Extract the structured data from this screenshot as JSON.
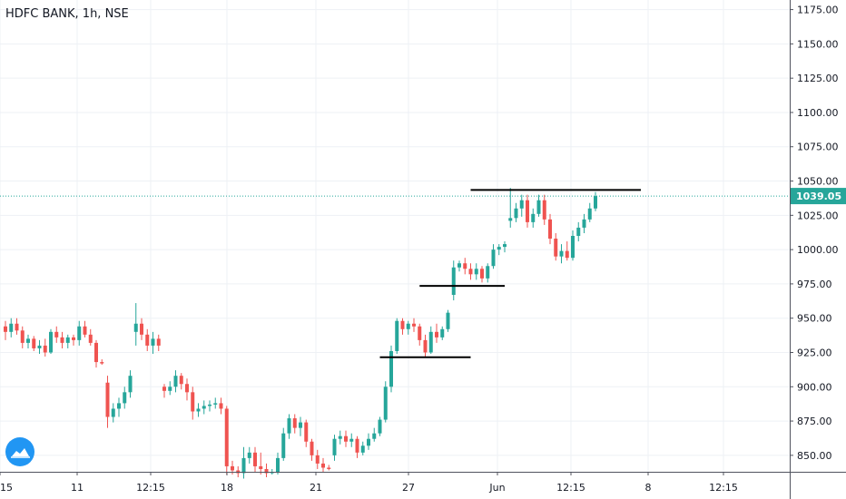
{
  "colors": {
    "up": "#26a69a",
    "down": "#ef5350",
    "grid": "#eef1f5",
    "axis_border": "#50535e",
    "price_line": "#26a69a",
    "annotation": "#000000",
    "badge_bg": "#26a69a",
    "badge_text": "#ffffff",
    "logo_bg": "#2196f3"
  },
  "icons": {
    "logo": "tradingview-cloud-icon"
  },
  "chart_data": {
    "type": "candlestick",
    "title": "HDFC BANK, 1h, NSE",
    "ylim": [
      838,
      1182
    ],
    "grid": true,
    "y_ticks": [
      "1175.00",
      "1150.00",
      "1125.00",
      "1100.00",
      "1075.00",
      "1050.00",
      "1025.00",
      "1000.00",
      "975.00",
      "950.00",
      "925.00",
      "900.00",
      "875.00",
      "850.00"
    ],
    "x_ticks": [
      "15",
      "11",
      "12:15",
      "18",
      "21",
      "27",
      "Jun",
      "12:15",
      "8",
      "12:15"
    ],
    "last_price": 1039.05,
    "last_price_label": "1039.05",
    "horizontal_lines": [
      {
        "name": "resistance",
        "from_candle": 82,
        "to_candle": 112,
        "y": 1043.5
      },
      {
        "name": "support-upper",
        "from_candle": 73,
        "to_candle": 88,
        "y": 973.5
      },
      {
        "name": "support-lower",
        "from_candle": 66,
        "to_candle": 82,
        "y": 921.5
      }
    ],
    "candles": [
      [
        944,
        948,
        934,
        940
      ],
      [
        940,
        950,
        936,
        946
      ],
      [
        946,
        950,
        938,
        941
      ],
      [
        941,
        944,
        928,
        932
      ],
      [
        932,
        938,
        928,
        935
      ],
      [
        935,
        937,
        926,
        928
      ],
      [
        928,
        934,
        924,
        930
      ],
      [
        930,
        935,
        922,
        925
      ],
      [
        925,
        942,
        924,
        940
      ],
      [
        940,
        944,
        932,
        936
      ],
      [
        936,
        940,
        928,
        932
      ],
      [
        932,
        938,
        928,
        936
      ],
      [
        936,
        938,
        930,
        934
      ],
      [
        934,
        948,
        930,
        944
      ],
      [
        944,
        948,
        936,
        938
      ],
      [
        938,
        942,
        930,
        932
      ],
      [
        932,
        934,
        914,
        918
      ],
      [
        918,
        920,
        916,
        917
      ],
      [
        903,
        908,
        870,
        878
      ],
      [
        878,
        888,
        874,
        884
      ],
      [
        884,
        892,
        878,
        888
      ],
      [
        888,
        900,
        884,
        896
      ],
      [
        896,
        912,
        892,
        908
      ],
      [
        940,
        961,
        930,
        946
      ],
      [
        946,
        950,
        934,
        938
      ],
      [
        938,
        942,
        926,
        930
      ],
      [
        930,
        940,
        924,
        935
      ],
      [
        935,
        938,
        926,
        930
      ],
      [
        900,
        902,
        892,
        897
      ],
      [
        897,
        904,
        894,
        900
      ],
      [
        900,
        912,
        896,
        908
      ],
      [
        908,
        910,
        898,
        902
      ],
      [
        902,
        906,
        890,
        896
      ],
      [
        896,
        900,
        876,
        882
      ],
      [
        882,
        888,
        878,
        884
      ],
      [
        884,
        890,
        880,
        886
      ],
      [
        886,
        890,
        882,
        887
      ],
      [
        887,
        892,
        884,
        888
      ],
      [
        888,
        892,
        880,
        884
      ],
      [
        884,
        886,
        836,
        842
      ],
      [
        842,
        846,
        836,
        839
      ],
      [
        839,
        842,
        834,
        837
      ],
      [
        837,
        856,
        833,
        848
      ],
      [
        848,
        856,
        844,
        852
      ],
      [
        852,
        856,
        838,
        842
      ],
      [
        842,
        852,
        836,
        840
      ],
      [
        840,
        844,
        834,
        837
      ],
      [
        837,
        840,
        836,
        838
      ],
      [
        838,
        852,
        836,
        848
      ],
      [
        848,
        870,
        846,
        866
      ],
      [
        866,
        880,
        862,
        877
      ],
      [
        877,
        880,
        866,
        870
      ],
      [
        870,
        878,
        864,
        874
      ],
      [
        874,
        876,
        856,
        860
      ],
      [
        860,
        862,
        846,
        850
      ],
      [
        850,
        854,
        840,
        844
      ],
      [
        844,
        848,
        838,
        841
      ],
      [
        841,
        843,
        839,
        840
      ],
      [
        850,
        865,
        846,
        862
      ],
      [
        862,
        868,
        858,
        864
      ],
      [
        864,
        868,
        856,
        860
      ],
      [
        860,
        866,
        856,
        862
      ],
      [
        862,
        864,
        848,
        852
      ],
      [
        852,
        860,
        850,
        857
      ],
      [
        857,
        866,
        854,
        862
      ],
      [
        862,
        870,
        860,
        866
      ],
      [
        866,
        878,
        864,
        876
      ],
      [
        876,
        904,
        874,
        900
      ],
      [
        900,
        930,
        896,
        926
      ],
      [
        926,
        950,
        924,
        948
      ],
      [
        948,
        950,
        938,
        942
      ],
      [
        942,
        948,
        938,
        946
      ],
      [
        946,
        950,
        940,
        944
      ],
      [
        944,
        946,
        930,
        934
      ],
      [
        934,
        938,
        922,
        925
      ],
      [
        925,
        944,
        924,
        940
      ],
      [
        940,
        946,
        932,
        936
      ],
      [
        936,
        944,
        934,
        942
      ],
      [
        942,
        956,
        940,
        954
      ],
      [
        967,
        992,
        963,
        987
      ],
      [
        987,
        992,
        984,
        990
      ],
      [
        990,
        994,
        982,
        986
      ],
      [
        986,
        990,
        978,
        982
      ],
      [
        982,
        990,
        978,
        986
      ],
      [
        986,
        988,
        976,
        979
      ],
      [
        979,
        990,
        976,
        988
      ],
      [
        988,
        1004,
        986,
        1000
      ],
      [
        1000,
        1004,
        996,
        1002
      ],
      [
        1002,
        1006,
        998,
        1004
      ],
      [
        1021,
        1045,
        1016,
        1023
      ],
      [
        1023,
        1034,
        1020,
        1030
      ],
      [
        1030,
        1040,
        1024,
        1036
      ],
      [
        1036,
        1040,
        1016,
        1020
      ],
      [
        1020,
        1030,
        1016,
        1026
      ],
      [
        1026,
        1040,
        1024,
        1036
      ],
      [
        1036,
        1040,
        1018,
        1022
      ],
      [
        1022,
        1026,
        1004,
        1008
      ],
      [
        1008,
        1012,
        992,
        995
      ],
      [
        995,
        1004,
        990,
        999
      ],
      [
        999,
        1006,
        992,
        994
      ],
      [
        994,
        1014,
        992,
        1010
      ],
      [
        1010,
        1020,
        1006,
        1016
      ],
      [
        1016,
        1026,
        1012,
        1022
      ],
      [
        1022,
        1034,
        1020,
        1030
      ],
      [
        1030,
        1042,
        1028,
        1039.05
      ]
    ]
  }
}
